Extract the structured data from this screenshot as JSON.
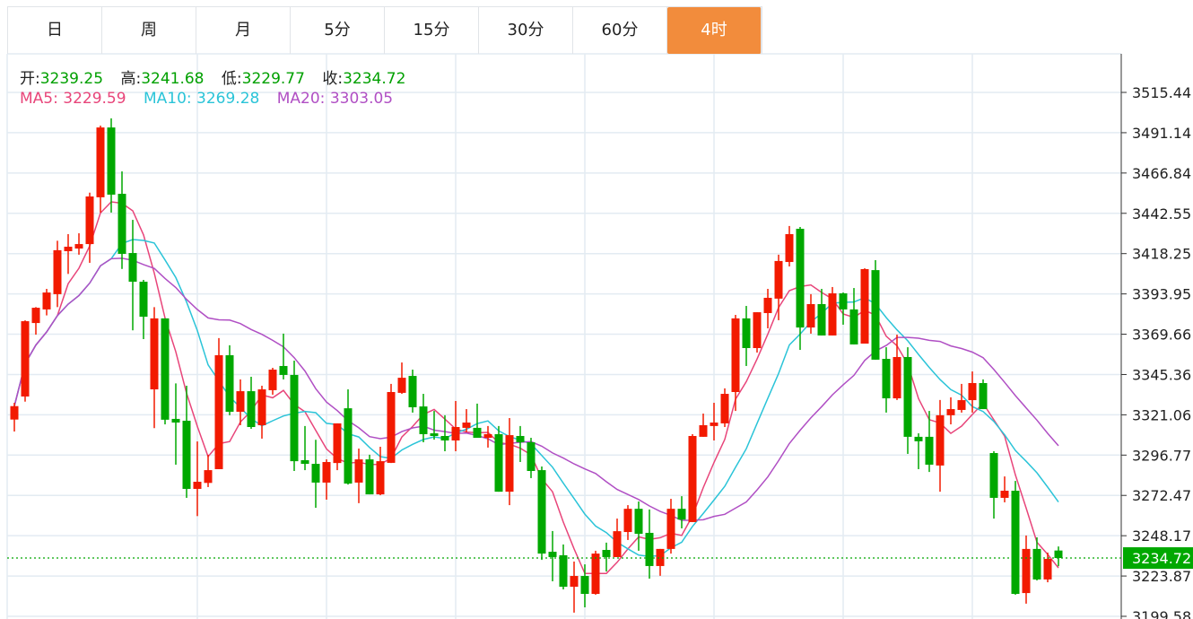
{
  "tabs": [
    {
      "label": "日",
      "active": false
    },
    {
      "label": "周",
      "active": false
    },
    {
      "label": "月",
      "active": false
    },
    {
      "label": "5分",
      "active": false
    },
    {
      "label": "15分",
      "active": false
    },
    {
      "label": "30分",
      "active": false
    },
    {
      "label": "60分",
      "active": false
    },
    {
      "label": "4时",
      "active": true
    }
  ],
  "ohlc": {
    "open_label": "开:",
    "open": "3239.25",
    "high_label": "高:",
    "high": "3241.68",
    "low_label": "低:",
    "low": "3229.77",
    "close_label": "收:",
    "close": "3234.72"
  },
  "ma": {
    "ma5_label": "MA5:",
    "ma5": "3229.59",
    "ma10_label": "MA10:",
    "ma10": "3269.28",
    "ma20_label": "MA20:",
    "ma20": "3303.05"
  },
  "colors": {
    "up": "#f21a00",
    "down": "#00a800",
    "ma5": "#e8457a",
    "ma10": "#2bc4d8",
    "ma20": "#b04fc4",
    "active_tab": "#f28c3c",
    "grid": "#e3ebf2",
    "price_line": "#00a800"
  },
  "chart_data": {
    "type": "candlestick",
    "columns": [
      "open",
      "high",
      "low",
      "close"
    ],
    "y_ticks": [
      "3515.44",
      "3491.14",
      "3466.84",
      "3442.55",
      "3418.25",
      "3393.95",
      "3369.66",
      "3345.36",
      "3321.06",
      "3296.77",
      "3272.47",
      "3248.17",
      "3223.87",
      "3199.58"
    ],
    "ylim": [
      3199.58,
      3515.44
    ],
    "current_price": "3234.72",
    "grid": true,
    "ma_periods": [
      5,
      10,
      20
    ],
    "candles": [
      [
        3318.2,
        3328.3,
        3311.0,
        3326.3
      ],
      [
        3332.1,
        3378.0,
        3329.0,
        3377.5
      ],
      [
        3376.4,
        3386.0,
        3369.4,
        3385.6
      ],
      [
        3384.6,
        3397.0,
        3381.0,
        3394.8
      ],
      [
        3393.8,
        3426.0,
        3386.0,
        3420.3
      ],
      [
        3419.7,
        3430.0,
        3406.0,
        3422.4
      ],
      [
        3421.3,
        3430.5,
        3417.6,
        3424.0
      ],
      [
        3424.0,
        3455.0,
        3412.7,
        3452.7
      ],
      [
        3452.2,
        3495.4,
        3443.0,
        3494.3
      ],
      [
        3494.3,
        3499.8,
        3443.0,
        3453.8
      ],
      [
        3454.3,
        3467.8,
        3409.0,
        3418.1
      ],
      [
        3418.6,
        3438.6,
        3372.0,
        3401.3
      ],
      [
        3401.3,
        3402.4,
        3366.7,
        3380.2
      ],
      [
        3336.4,
        3386.0,
        3313.0,
        3379.2
      ],
      [
        3379.2,
        3379.2,
        3315.3,
        3318.1
      ],
      [
        3318.6,
        3340.0,
        3291.0,
        3316.4
      ],
      [
        3317.5,
        3338.6,
        3271.0,
        3276.4
      ],
      [
        3276.4,
        3305.0,
        3260.0,
        3280.7
      ],
      [
        3280.0,
        3297.0,
        3277.5,
        3287.7
      ],
      [
        3288.3,
        3367.3,
        3288.3,
        3357.0
      ],
      [
        3357.0,
        3363.0,
        3320.8,
        3322.9
      ],
      [
        3322.9,
        3342.4,
        3314.8,
        3335.3
      ],
      [
        3335.3,
        3344.0,
        3312.6,
        3313.7
      ],
      [
        3314.8,
        3338.6,
        3306.7,
        3336.4
      ],
      [
        3335.9,
        3349.4,
        3333.2,
        3348.3
      ],
      [
        3350.5,
        3370.0,
        3342.4,
        3345.1
      ],
      [
        3345.1,
        3353.7,
        3287.2,
        3293.1
      ],
      [
        3293.7,
        3314.3,
        3287.7,
        3291.5
      ],
      [
        3291.5,
        3306.0,
        3265.0,
        3280.2
      ],
      [
        3280.2,
        3294.2,
        3269.9,
        3292.6
      ],
      [
        3292.0,
        3315.9,
        3287.7,
        3315.9
      ],
      [
        3325.0,
        3336.4,
        3279.0,
        3279.6
      ],
      [
        3280.2,
        3300.7,
        3267.8,
        3294.2
      ],
      [
        3294.2,
        3297.0,
        3273.1,
        3273.1
      ],
      [
        3273.1,
        3301.8,
        3272.6,
        3293.1
      ],
      [
        3292.1,
        3339.7,
        3292.0,
        3334.8
      ],
      [
        3334.3,
        3352.6,
        3333.7,
        3343.4
      ],
      [
        3344.5,
        3348.3,
        3322.4,
        3325.6
      ],
      [
        3326.1,
        3333.7,
        3304.5,
        3309.4
      ],
      [
        3309.9,
        3323.4,
        3306.1,
        3308.3
      ],
      [
        3308.3,
        3320.8,
        3299.1,
        3305.6
      ],
      [
        3305.6,
        3329.4,
        3299.1,
        3313.7
      ],
      [
        3313.2,
        3324.5,
        3310.5,
        3316.4
      ],
      [
        3313.2,
        3327.8,
        3307.2,
        3307.2
      ],
      [
        3307.2,
        3314.3,
        3301.3,
        3309.4
      ],
      [
        3309.4,
        3314.3,
        3274.7,
        3274.7
      ],
      [
        3274.7,
        3319.1,
        3266.6,
        3308.8
      ],
      [
        3308.3,
        3314.3,
        3292.6,
        3304.5
      ],
      [
        3304.5,
        3307.2,
        3282.9,
        3287.2
      ],
      [
        3287.7,
        3289.9,
        3233.6,
        3237.4
      ],
      [
        3238.5,
        3251.0,
        3220.7,
        3235.3
      ],
      [
        3236.4,
        3242.9,
        3215.8,
        3217.4
      ],
      [
        3217.4,
        3232.6,
        3201.8,
        3223.9
      ],
      [
        3223.9,
        3230.9,
        3205.0,
        3213.1
      ],
      [
        3213.1,
        3239.1,
        3212.6,
        3237.4
      ],
      [
        3239.6,
        3244.0,
        3226.6,
        3235.3
      ],
      [
        3235.3,
        3258.5,
        3235.3,
        3250.9
      ],
      [
        3250.4,
        3266.6,
        3245.6,
        3264.4
      ],
      [
        3264.4,
        3268.8,
        3239.1,
        3249.3
      ],
      [
        3249.9,
        3264.0,
        3222.3,
        3229.9
      ],
      [
        3229.9,
        3240.2,
        3224.0,
        3240.2
      ],
      [
        3240.2,
        3270.4,
        3237.4,
        3264.4
      ],
      [
        3264.4,
        3272.0,
        3252.6,
        3257.9
      ],
      [
        3256.4,
        3309.4,
        3256.4,
        3308.3
      ],
      [
        3307.8,
        3321.8,
        3307.8,
        3314.8
      ],
      [
        3314.3,
        3328.3,
        3305.6,
        3316.4
      ],
      [
        3315.9,
        3337.0,
        3313.7,
        3333.7
      ],
      [
        3334.8,
        3381.3,
        3323.4,
        3379.2
      ],
      [
        3379.2,
        3386.7,
        3350.5,
        3361.3
      ],
      [
        3361.3,
        3382.9,
        3358.6,
        3382.9
      ],
      [
        3382.4,
        3397.0,
        3373.2,
        3391.6
      ],
      [
        3391.1,
        3417.6,
        3378.1,
        3413.8
      ],
      [
        3413.2,
        3434.9,
        3410.5,
        3430.0
      ],
      [
        3433.2,
        3434.3,
        3360.2,
        3373.7
      ],
      [
        3373.7,
        3393.8,
        3370.0,
        3387.8
      ],
      [
        3387.8,
        3397.0,
        3368.9,
        3368.9
      ],
      [
        3368.9,
        3398.1,
        3368.9,
        3394.3
      ],
      [
        3394.3,
        3394.8,
        3375.4,
        3384.6
      ],
      [
        3384.6,
        3397.5,
        3363.5,
        3363.5
      ],
      [
        3364.0,
        3409.4,
        3364.0,
        3408.9
      ],
      [
        3408.3,
        3414.3,
        3354.3,
        3354.3
      ],
      [
        3354.8,
        3361.8,
        3322.4,
        3331.0
      ],
      [
        3331.0,
        3369.4,
        3330.0,
        3355.9
      ],
      [
        3355.9,
        3361.8,
        3297.5,
        3307.8
      ],
      [
        3307.8,
        3309.9,
        3288.3,
        3305.1
      ],
      [
        3307.8,
        3323.4,
        3286.6,
        3291.0
      ],
      [
        3290.5,
        3330.0,
        3274.7,
        3320.8
      ],
      [
        3320.8,
        3331.6,
        3315.3,
        3324.5
      ],
      [
        3324.0,
        3339.7,
        3322.4,
        3329.9
      ],
      [
        3329.9,
        3347.2,
        3322.4,
        3340.2
      ],
      [
        3340.2,
        3342.4,
        3324.5,
        3324.5
      ],
      [
        3298.0,
        3299.1,
        3258.5,
        3271.0
      ],
      [
        3271.0,
        3283.9,
        3268.3,
        3275.3
      ],
      [
        3275.3,
        3281.2,
        3212.6,
        3213.1
      ],
      [
        3213.6,
        3248.3,
        3207.2,
        3240.2
      ],
      [
        3240.2,
        3247.2,
        3221.2,
        3221.8
      ],
      [
        3221.8,
        3238.0,
        3220.1,
        3234.2
      ],
      [
        3239.25,
        3241.68,
        3229.77,
        3234.72
      ]
    ]
  }
}
